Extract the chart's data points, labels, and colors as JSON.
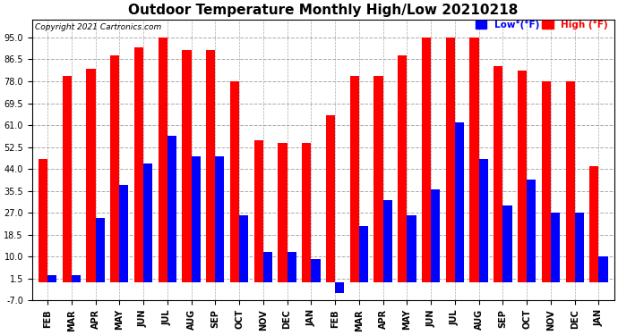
{
  "title": "Outdoor Temperature Monthly High/Low 20210218",
  "copyright": "Copyright 2021 Cartronics.com",
  "months": [
    "FEB",
    "MAR",
    "APR",
    "MAY",
    "JUN",
    "JUL",
    "AUG",
    "SEP",
    "OCT",
    "NOV",
    "DEC",
    "JAN",
    "FEB",
    "MAR",
    "APR",
    "MAY",
    "JUN",
    "JUL",
    "AUG",
    "SEP",
    "OCT",
    "NOV",
    "DEC",
    "JAN"
  ],
  "high_values": [
    48,
    80,
    83,
    88,
    91,
    95,
    90,
    90,
    78,
    55,
    54,
    54,
    65,
    80,
    80,
    88,
    95,
    95,
    95,
    84,
    82,
    78,
    78,
    45
  ],
  "low_values": [
    3,
    3,
    25,
    38,
    46,
    57,
    49,
    49,
    26,
    12,
    12,
    9,
    -4,
    22,
    32,
    26,
    36,
    62,
    48,
    30,
    40,
    27,
    27,
    10
  ],
  "ylim": [
    -7,
    102
  ],
  "yticks": [
    -7.0,
    1.5,
    10.0,
    18.5,
    27.0,
    35.5,
    44.0,
    52.5,
    61.0,
    69.5,
    78.0,
    86.5,
    95.0
  ],
  "bar_width": 0.38,
  "high_color": "#ff0000",
  "low_color": "#0000ff",
  "grid_color": "#aaaaaa",
  "background_color": "#ffffff",
  "title_fontsize": 11,
  "axis_label_fontsize": 7
}
